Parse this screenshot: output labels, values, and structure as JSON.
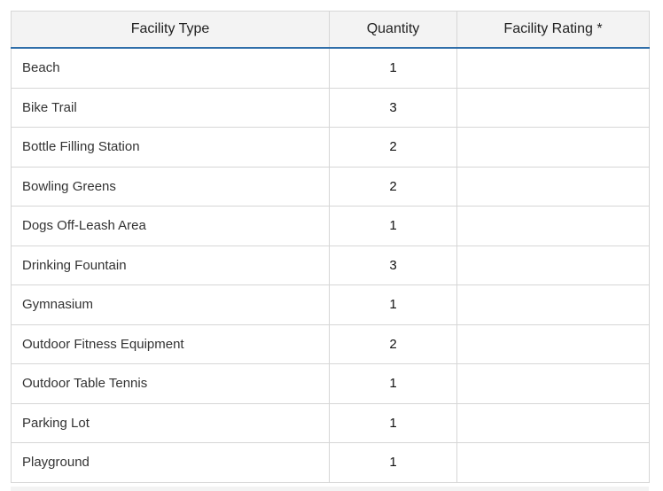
{
  "table": {
    "headers": {
      "facility_type": "Facility Type",
      "quantity": "Quantity",
      "facility_rating": "Facility Rating *"
    },
    "rows": [
      {
        "facility_type": "Beach",
        "quantity": "1",
        "facility_rating": ""
      },
      {
        "facility_type": "Bike Trail",
        "quantity": "3",
        "facility_rating": ""
      },
      {
        "facility_type": "Bottle Filling Station",
        "quantity": "2",
        "facility_rating": ""
      },
      {
        "facility_type": "Bowling Greens",
        "quantity": "2",
        "facility_rating": ""
      },
      {
        "facility_type": "Dogs Off-Leash Area",
        "quantity": "1",
        "facility_rating": ""
      },
      {
        "facility_type": "Drinking Fountain",
        "quantity": "3",
        "facility_rating": ""
      },
      {
        "facility_type": "Gymnasium",
        "quantity": "1",
        "facility_rating": ""
      },
      {
        "facility_type": "Outdoor Fitness Equipment",
        "quantity": "2",
        "facility_rating": ""
      },
      {
        "facility_type": "Outdoor Table Tennis",
        "quantity": "1",
        "facility_rating": ""
      },
      {
        "facility_type": "Parking Lot",
        "quantity": "1",
        "facility_rating": ""
      },
      {
        "facility_type": "Playground",
        "quantity": "1",
        "facility_rating": ""
      }
    ]
  },
  "colors": {
    "header_background": "#f3f3f3",
    "header_underline": "#2f6ea9",
    "cell_border": "#d6d6d6"
  }
}
